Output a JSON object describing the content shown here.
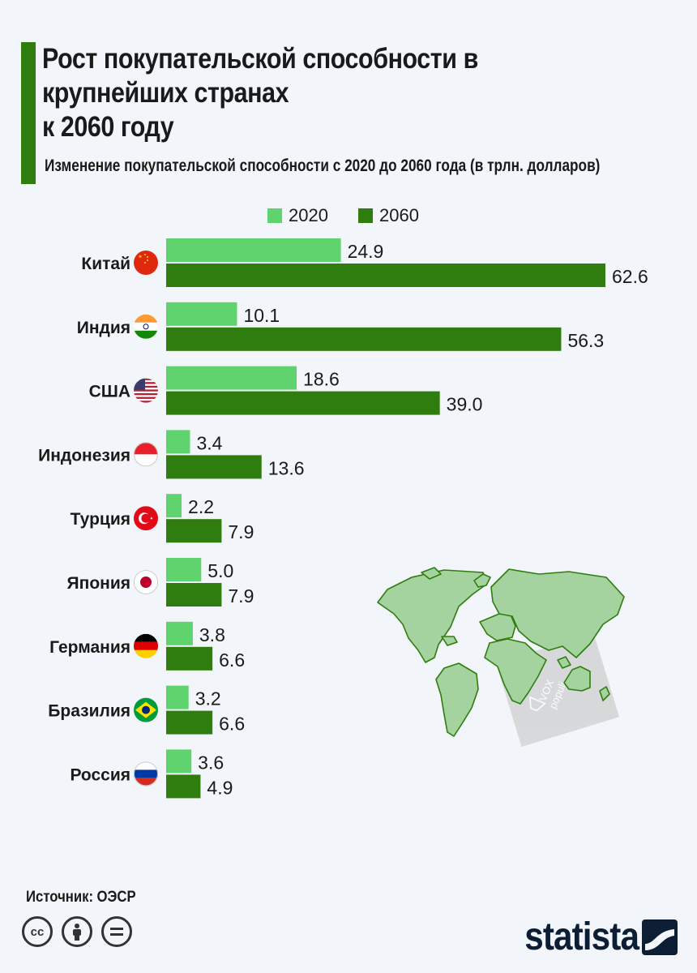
{
  "header": {
    "title": "Рост покупательской способности в крупнейших странах\nк 2060 году",
    "subtitle": "Изменение покупательской способности с 2020 до 2060 года (в трлн. долларов)"
  },
  "footer": {
    "source_label": "Источник:",
    "source_value": "ОЭСР",
    "brand": "statista"
  },
  "watermark": {
    "text_1": "VOX",
    "text_2": "populi"
  },
  "license_icons": [
    "cc-icon",
    "person-icon",
    "equals-icon"
  ],
  "colors": {
    "accent": "#2f7d0e",
    "series_2020": "#5fd46e",
    "series_2060": "#2f7d0e",
    "map": "#a5d3a0",
    "brand": "#0b1e33"
  },
  "chart_data": {
    "type": "bar",
    "orientation": "horizontal",
    "categories": [
      "Китай",
      "Индия",
      "США",
      "Индонезия",
      "Турция",
      "Япония",
      "Германия",
      "Бразилия",
      "Россия"
    ],
    "flags": [
      "china-flag-icon",
      "india-flag-icon",
      "usa-flag-icon",
      "indonesia-flag-icon",
      "turkey-flag-icon",
      "japan-flag-icon",
      "germany-flag-icon",
      "brazil-flag-icon",
      "russia-flag-icon"
    ],
    "series": [
      {
        "name": "2020",
        "color": "#5fd46e",
        "values": [
          24.9,
          10.1,
          18.6,
          3.4,
          2.2,
          5.0,
          3.8,
          3.2,
          3.6
        ],
        "labels": [
          "24.9",
          "10.1",
          "18.6",
          "3.4",
          "2.2",
          "5.0",
          "3.8",
          "3.2",
          "3.6"
        ]
      },
      {
        "name": "2060",
        "color": "#2f7d0e",
        "values": [
          62.6,
          56.3,
          39.0,
          13.6,
          7.9,
          7.9,
          6.6,
          6.6,
          4.9
        ],
        "labels": [
          "62.6",
          "56.3",
          "39.0",
          "13.6",
          "7.9",
          "7.9",
          "6.6",
          "6.6",
          "4.9"
        ]
      }
    ],
    "legend": "top-center",
    "grid": false,
    "xlim": [
      0,
      62.6
    ]
  }
}
